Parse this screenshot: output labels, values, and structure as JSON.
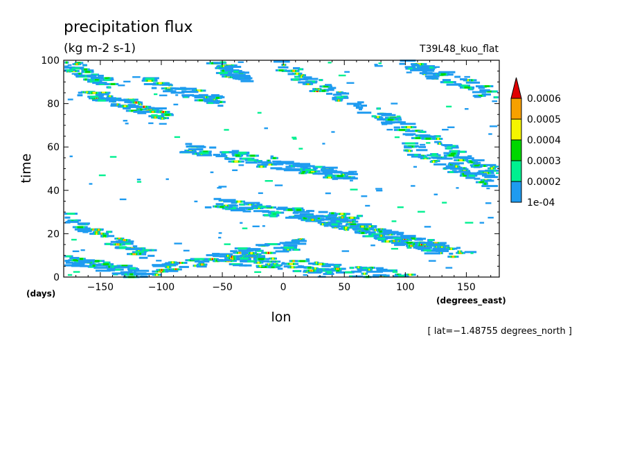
{
  "chart_data": {
    "type": "heatmap",
    "title": "precipitation flux",
    "units": "(kg m-2 s-1)",
    "run_label": "T39L48_kuo_flat",
    "xlabel": "lon",
    "xunits": "(degrees_east)",
    "ylabel": "time",
    "yunits": "(days)",
    "xlim": [
      -180,
      177
    ],
    "ylim": [
      0,
      100
    ],
    "x_ticks": [
      -150,
      -100,
      -50,
      0,
      50,
      100,
      150
    ],
    "y_ticks": [
      0,
      20,
      40,
      60,
      80,
      100
    ],
    "x_tick_labels": [
      "−150",
      "−100",
      "−50",
      "0",
      "50",
      "100",
      "150"
    ],
    "y_tick_labels": [
      "0",
      "20",
      "40",
      "60",
      "80",
      "100"
    ],
    "annotation": "[ lat=−1.48755 degrees_north ]",
    "colorbar": {
      "levels": [
        "1e-04",
        "0.0002",
        "0.0003",
        "0.0004",
        "0.0005",
        "0.0006"
      ],
      "colors": [
        "#1e9bf0",
        "#00f090",
        "#00d700",
        "#f5f500",
        "#f7a000",
        "#e00000"
      ]
    },
    "bands": [
      {
        "name": "band-1",
        "lon_start": -120,
        "t_start": 2,
        "lon_end": 20,
        "t_end": 16,
        "peak": 5
      },
      {
        "name": "band-2",
        "lon_start": -60,
        "t_start": 34,
        "lon_end": 60,
        "t_end": 26,
        "peak": 3
      },
      {
        "name": "band-3",
        "lon_start": 20,
        "t_start": 28,
        "lon_end": 135,
        "t_end": 12,
        "peak": 6
      },
      {
        "name": "band-4",
        "lon_start": 40,
        "t_start": 26,
        "lon_end": 150,
        "t_end": 10,
        "peak": 5
      },
      {
        "name": "band-5",
        "lon_start": -80,
        "t_start": 60,
        "lon_end": 60,
        "t_end": 46,
        "peak": 3
      },
      {
        "name": "band-6",
        "lon_start": -170,
        "t_start": 86,
        "lon_end": -90,
        "t_end": 74,
        "peak": 6
      },
      {
        "name": "band-7",
        "lon_start": -110,
        "t_start": 90,
        "lon_end": -50,
        "t_end": 81,
        "peak": 3
      },
      {
        "name": "band-8",
        "lon_start": 0,
        "t_start": 97,
        "lon_end": 50,
        "t_end": 82,
        "peak": 6
      },
      {
        "name": "band-9",
        "lon_start": 60,
        "t_start": 80,
        "lon_end": 175,
        "t_end": 48,
        "peak": 3
      },
      {
        "name": "band-10",
        "lon_start": -180,
        "t_start": 28,
        "lon_end": -110,
        "t_end": 10,
        "peak": 4
      },
      {
        "name": "band-11",
        "lon_start": -180,
        "t_start": 99,
        "lon_end": -140,
        "t_end": 88,
        "peak": 4
      },
      {
        "name": "band-12",
        "lon_start": 100,
        "t_start": 99,
        "lon_end": 175,
        "t_end": 84,
        "peak": 3
      },
      {
        "name": "band-13",
        "lon_start": -40,
        "t_start": 8,
        "lon_end": 110,
        "t_end": 0,
        "peak": 4
      },
      {
        "name": "band-14",
        "lon_start": -60,
        "t_start": 99,
        "lon_end": -30,
        "t_end": 92,
        "peak": 3
      },
      {
        "name": "band-15",
        "lon_start": -180,
        "t_start": 8,
        "lon_end": -120,
        "t_end": 2,
        "peak": 2
      },
      {
        "name": "band-16",
        "lon_start": 100,
        "t_start": 60,
        "lon_end": 170,
        "t_end": 44,
        "peak": 3
      }
    ]
  }
}
